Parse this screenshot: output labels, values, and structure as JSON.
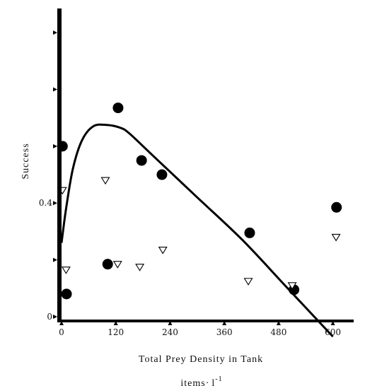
{
  "chart_data": {
    "type": "scatter",
    "title": "",
    "xlabel": "Total Prey Density in Tank",
    "xunit_base": "items",
    "xunit_dot": "·",
    "xunit_l": "l",
    "xunit_exp": "-1",
    "ylabel": "Success",
    "xlim": [
      0,
      610
    ],
    "ylim": [
      0,
      1.04
    ],
    "x_ticks": [
      0,
      120,
      240,
      360,
      480,
      600
    ],
    "x_tick_labels": [
      "0",
      "120",
      "240",
      "360",
      "480",
      "600"
    ],
    "y_ticks": [
      0,
      0.2,
      0.4,
      0.6,
      0.8,
      1.0
    ],
    "y_tick_labels": [
      "0",
      "",
      "0.4",
      "",
      "",
      ""
    ],
    "grid": false,
    "series": [
      {
        "marker": "circle-filled",
        "color": "#000000",
        "x": [
          2,
          11,
          102,
          125,
          177,
          222,
          416,
          514,
          608
        ],
        "y": [
          0.6,
          0.08,
          0.185,
          0.735,
          0.55,
          0.5,
          0.295,
          0.095,
          0.385
        ]
      },
      {
        "marker": "triangle-down-open",
        "color": "#000000",
        "x": [
          2,
          10,
          97,
          124,
          173,
          224,
          413,
          510,
          607
        ],
        "y": [
          0.445,
          0.165,
          0.48,
          0.185,
          0.175,
          0.235,
          0.125,
          0.11,
          0.28
        ]
      },
      {
        "marker": "line",
        "color": "#000000",
        "x": [
          0,
          10,
          25,
          45,
          70,
          100,
          130,
          150,
          200,
          300,
          400,
          500,
          600
        ],
        "y": [
          0.26,
          0.38,
          0.52,
          0.62,
          0.67,
          0.675,
          0.665,
          0.645,
          0.57,
          0.42,
          0.27,
          0.1,
          -0.07
        ]
      }
    ]
  }
}
